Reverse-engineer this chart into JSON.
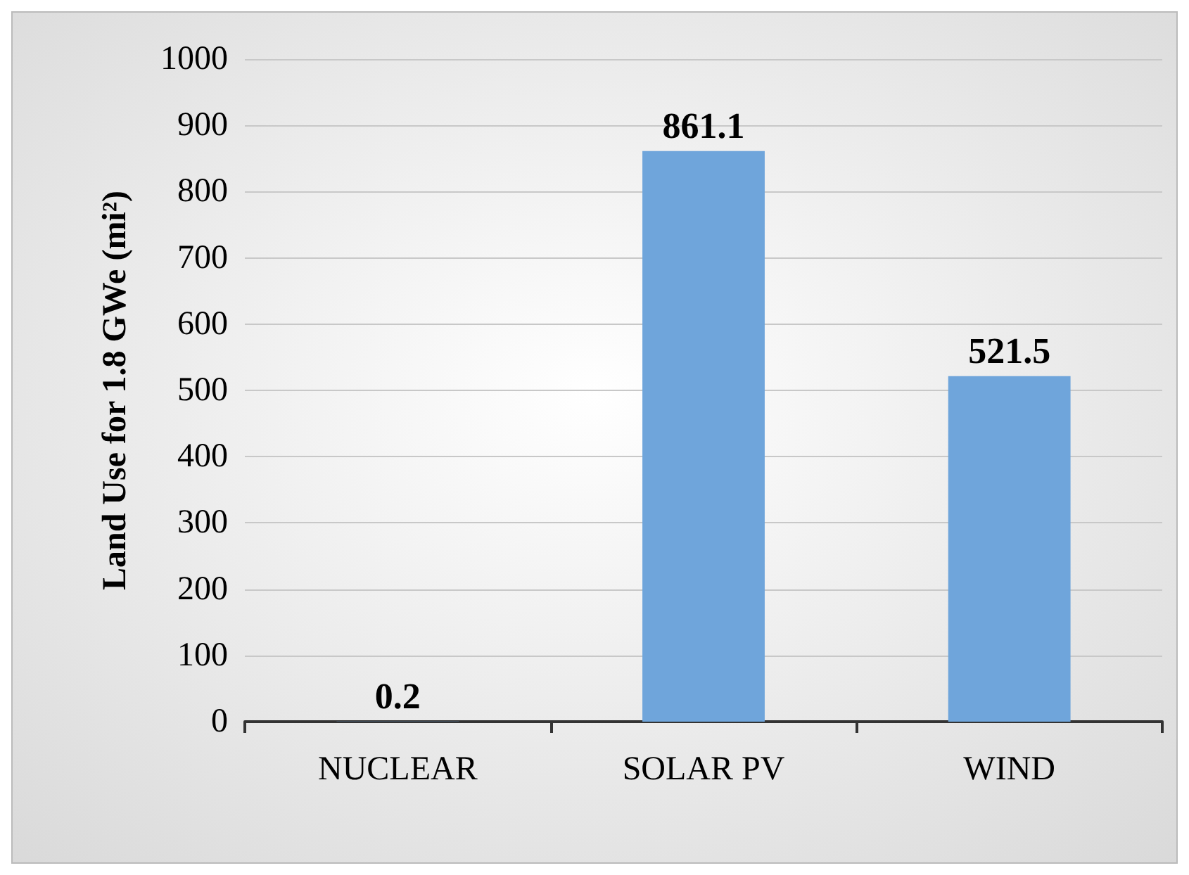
{
  "chart_data": {
    "type": "bar",
    "ylabel": "Land Use for 1.8 GWe (mi²)",
    "categories": [
      "NUCLEAR",
      "SOLAR PV",
      "WIND"
    ],
    "values": [
      0.2,
      861.1,
      521.5
    ],
    "color": "#6fa5db",
    "ylim": [
      0,
      1000
    ],
    "yticks": [
      0,
      100,
      200,
      300,
      400,
      500,
      600,
      700,
      800,
      900,
      1000
    ],
    "grid": "y",
    "data_labels": true
  }
}
